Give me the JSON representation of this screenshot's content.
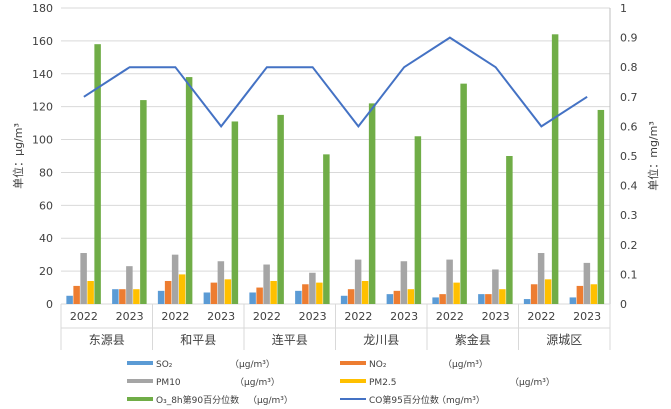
{
  "chart_data": {
    "type": "bar",
    "groups": [
      "东源县",
      "和平县",
      "连平县",
      "龙川县",
      "紫金县",
      "源城区"
    ],
    "years": [
      "2022",
      "2023"
    ],
    "y_left": {
      "label": "单位：μg/m³",
      "min": 0,
      "max": 180,
      "step": 20,
      "ticks": [
        "0",
        "20",
        "40",
        "60",
        "80",
        "100",
        "120",
        "140",
        "160",
        "180"
      ]
    },
    "y_right": {
      "label": "单位：mg/m³",
      "min": 0,
      "max": 1,
      "step": 0.1,
      "ticks": [
        "0",
        "0.1",
        "0.2",
        "0.3",
        "0.4",
        "0.5",
        "0.6",
        "0.7",
        "0.8",
        "0.9",
        "1"
      ]
    },
    "grid": true,
    "legend_position": "bottom",
    "series": [
      {
        "name": "SO₂",
        "unit": "（μg/m³）",
        "type": "bar",
        "axis": "left",
        "color": "#5B9BD5",
        "values": [
          5,
          9,
          8,
          7,
          7,
          8,
          5,
          6,
          4,
          6,
          3,
          4
        ]
      },
      {
        "name": "NO₂",
        "unit": "（μg/m³）",
        "type": "bar",
        "axis": "left",
        "color": "#ED7D31",
        "values": [
          11,
          9,
          14,
          13,
          10,
          12,
          9,
          8,
          6,
          6,
          12,
          11
        ]
      },
      {
        "name": "PM10",
        "unit": "（μg/m³）",
        "type": "bar",
        "axis": "left",
        "color": "#A5A5A5",
        "values": [
          31,
          23,
          30,
          26,
          24,
          19,
          27,
          26,
          27,
          21,
          31,
          25
        ]
      },
      {
        "name": "PM2.5",
        "unit": "（μg/m³）",
        "type": "bar",
        "axis": "left",
        "color": "#FFC000",
        "values": [
          14,
          9,
          18,
          15,
          14,
          13,
          14,
          9,
          13,
          9,
          15,
          12
        ]
      },
      {
        "name": "O₃_8h第90百分位数",
        "unit": "（μg/m³）",
        "type": "bar",
        "axis": "left",
        "color": "#70AD47",
        "values": [
          158,
          124,
          138,
          111,
          115,
          91,
          122,
          102,
          134,
          90,
          164,
          118
        ]
      },
      {
        "name": "CO第95百分位数",
        "unit": "（mg/m³）",
        "type": "line",
        "axis": "right",
        "color": "#4472C4",
        "values": [
          0.7,
          0.8,
          0.8,
          0.6,
          0.8,
          0.8,
          0.6,
          0.8,
          0.9,
          0.8,
          0.6,
          0.7
        ]
      }
    ]
  }
}
